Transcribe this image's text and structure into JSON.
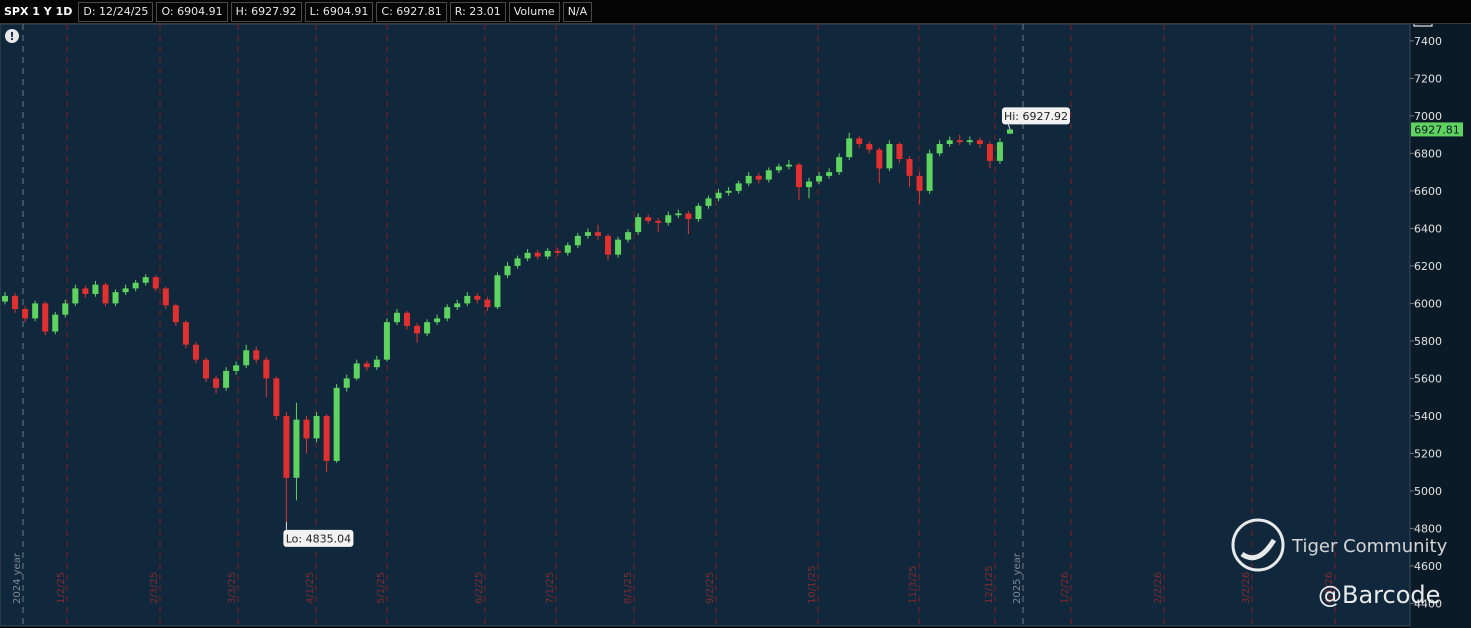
{
  "header": {
    "symbol": "SPX 1 Y 1D",
    "fields": [
      "D: 12/24/25",
      "O: 6904.91",
      "H: 6927.92",
      "L: 6904.91",
      "C: 6927.81",
      "R: 23.01",
      "Volume",
      "N/A"
    ]
  },
  "chart_data": {
    "type": "candlestick",
    "open": [
      6010,
      6040,
      5970,
      5920,
      6000,
      5850,
      5940,
      6000,
      6080,
      6050,
      6100,
      6000,
      6060,
      6080,
      6110,
      6140,
      6080,
      5990,
      5900,
      5780,
      5700,
      5600,
      5550,
      5640,
      5670,
      5750,
      5700,
      5600,
      5400,
      5070,
      5380,
      5280,
      5400,
      5160,
      5550,
      5600,
      5680,
      5660,
      5700,
      5900,
      5950,
      5880,
      5840,
      5900,
      5920,
      5980,
      6000,
      6040,
      6020,
      5980,
      6150,
      6200,
      6240,
      6270,
      6250,
      6280,
      6270,
      6310,
      6360,
      6380,
      6360,
      6260,
      6340,
      6380,
      6460,
      6440,
      6430,
      6470,
      6480,
      6450,
      6520,
      6560,
      6590,
      6600,
      6640,
      6680,
      6660,
      6710,
      6730,
      6740,
      6620,
      6650,
      6680,
      6700,
      6780,
      6880,
      6850,
      6820,
      6720,
      6850,
      6770,
      6680,
      6600,
      6800,
      6850,
      6870,
      6860,
      6870,
      6850,
      6760,
      6904.91
    ],
    "high": [
      6060,
      6055,
      5985,
      6015,
      6010,
      5955,
      6020,
      6100,
      6095,
      6120,
      6110,
      6075,
      6100,
      6125,
      6155,
      6150,
      6090,
      6000,
      5910,
      5795,
      5710,
      5615,
      5660,
      5690,
      5780,
      5770,
      5715,
      5610,
      5420,
      5470,
      5400,
      5420,
      5410,
      5570,
      5620,
      5700,
      5695,
      5720,
      5920,
      5970,
      5960,
      5895,
      5915,
      5940,
      5995,
      6020,
      6060,
      6055,
      6035,
      6165,
      6220,
      6255,
      6290,
      6285,
      6295,
      6295,
      6325,
      6375,
      6400,
      6420,
      6370,
      6355,
      6395,
      6480,
      6475,
      6455,
      6490,
      6500,
      6495,
      6535,
      6575,
      6610,
      6620,
      6655,
      6700,
      6695,
      6725,
      6745,
      6765,
      6750,
      6670,
      6700,
      6720,
      6800,
      6910,
      6895,
      6865,
      6830,
      6870,
      6860,
      6785,
      6700,
      6820,
      6870,
      6890,
      6900,
      6890,
      6885,
      6865,
      6880,
      6927.92
    ],
    "low": [
      5995,
      5950,
      5900,
      5905,
      5830,
      5835,
      5925,
      5985,
      6030,
      6035,
      5985,
      5985,
      6045,
      6065,
      6095,
      6065,
      5970,
      5880,
      5760,
      5680,
      5580,
      5520,
      5535,
      5620,
      5655,
      5680,
      5500,
      5380,
      4835.04,
      4950,
      5200,
      5260,
      5100,
      5150,
      5530,
      5590,
      5640,
      5645,
      5690,
      5885,
      5860,
      5790,
      5825,
      5885,
      5905,
      5965,
      5985,
      6000,
      5960,
      5970,
      6135,
      6185,
      6225,
      6235,
      6235,
      6255,
      6255,
      6295,
      6345,
      6340,
      6230,
      6245,
      6325,
      6365,
      6425,
      6380,
      6415,
      6455,
      6370,
      6435,
      6505,
      6545,
      6575,
      6585,
      6625,
      6640,
      6645,
      6695,
      6715,
      6550,
      6560,
      6635,
      6665,
      6685,
      6765,
      6830,
      6800,
      6640,
      6705,
      6750,
      6620,
      6530,
      6585,
      6785,
      6835,
      6845,
      6845,
      6830,
      6720,
      6745,
      6904.91
    ],
    "close": [
      6040,
      5970,
      5920,
      6000,
      5850,
      5940,
      6000,
      6080,
      6050,
      6100,
      6000,
      6060,
      6080,
      6110,
      6140,
      6080,
      5990,
      5900,
      5780,
      5700,
      5600,
      5550,
      5640,
      5670,
      5750,
      5700,
      5600,
      5400,
      5070,
      5380,
      5280,
      5400,
      5160,
      5550,
      5600,
      5680,
      5660,
      5700,
      5900,
      5950,
      5880,
      5840,
      5900,
      5920,
      5980,
      6000,
      6040,
      6020,
      5980,
      6150,
      6200,
      6240,
      6270,
      6250,
      6280,
      6270,
      6310,
      6360,
      6380,
      6360,
      6260,
      6340,
      6380,
      6460,
      6440,
      6430,
      6470,
      6480,
      6450,
      6520,
      6560,
      6590,
      6600,
      6640,
      6680,
      6660,
      6710,
      6730,
      6740,
      6620,
      6650,
      6680,
      6700,
      6780,
      6880,
      6850,
      6820,
      6720,
      6850,
      6770,
      6680,
      6600,
      6800,
      6850,
      6870,
      6860,
      6870,
      6850,
      6760,
      6860,
      6927.81
    ],
    "colors": {
      "up": "#5fd35f",
      "down": "#e0302f"
    },
    "ylim": [
      4285,
      7490
    ],
    "yticks": [
      4400,
      4600,
      4800,
      5000,
      5200,
      5400,
      5600,
      5800,
      6000,
      6200,
      6400,
      6600,
      6800,
      7000,
      7200,
      7400
    ],
    "date_labels": [
      "2024 year",
      "1/2/25",
      "2/3/25",
      "3/3/25",
      "4/1/25",
      "5/1/25",
      "6/2/25",
      "7/1/25",
      "8/1/25",
      "9/2/25",
      "10/1/25",
      "11/3/25",
      "12/1/25",
      "2025 year",
      "1/2/26",
      "2/2/26",
      "3/2/26",
      "4/1/26"
    ],
    "hi_label": "Hi: 6927.92",
    "lo_label": "Lo: 4835.04"
  },
  "watermark": {
    "brand": "Tiger Community",
    "handle": "@Barcode"
  }
}
